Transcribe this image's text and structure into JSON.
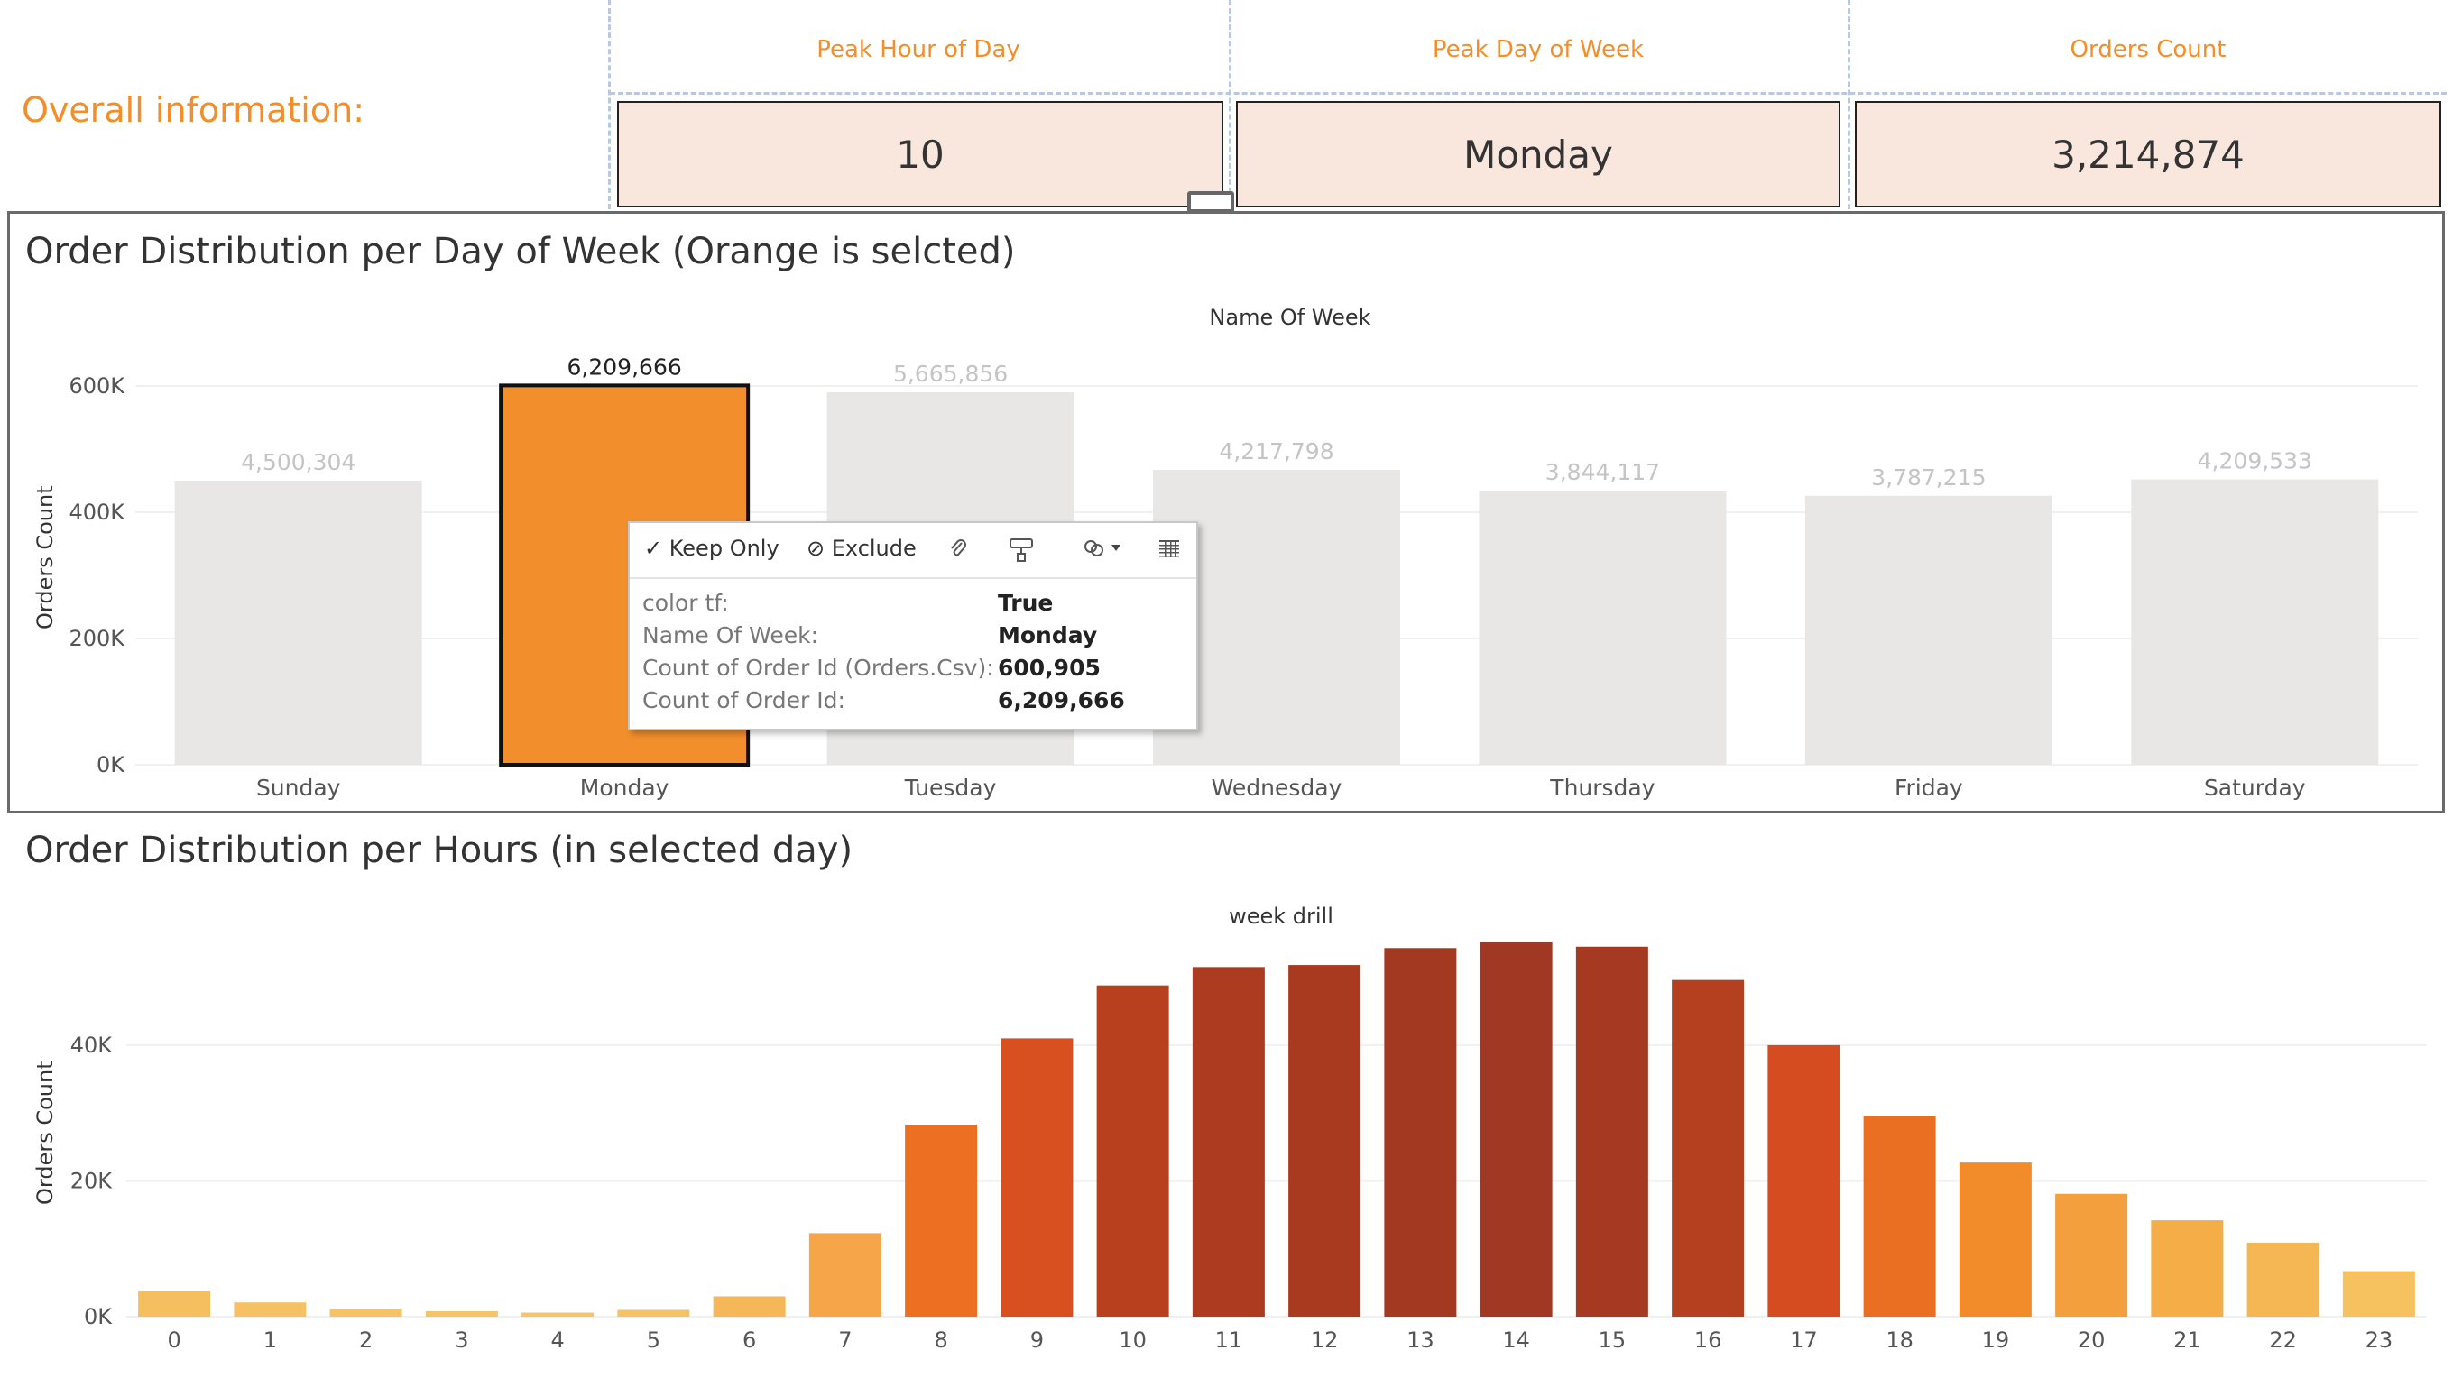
{
  "header": {
    "overall_label": "Overall information:",
    "kpis": [
      {
        "title": "Peak Hour of Day",
        "value": "10"
      },
      {
        "title": "Peak Day of Week",
        "value": "Monday"
      },
      {
        "title": "Orders Count",
        "value": "3,214,874"
      }
    ]
  },
  "day_panel": {
    "title": "Order Distribution per Day of Week (Orange is selcted)",
    "tooltip": {
      "keep_only": "Keep Only",
      "exclude": "Exclude",
      "rows": [
        {
          "key": "color tf:",
          "value": "True"
        },
        {
          "key": "Name Of Week:",
          "value": "Monday"
        },
        {
          "key": "Count of Order Id (Orders.Csv):",
          "value": "600,905"
        },
        {
          "key": "Count of Order Id:",
          "value": "6,209,666"
        }
      ]
    }
  },
  "hour_panel": {
    "title": "Order Distribution per Hours (in selected day)"
  },
  "chart_data": [
    {
      "type": "bar",
      "title": "Name Of Week",
      "xlabel": "",
      "ylabel": "Orders Count",
      "yticks": [
        "0K",
        "200K",
        "400K",
        "600K"
      ],
      "ylim": [
        0,
        600000
      ],
      "grid": true,
      "categories": [
        "Sunday",
        "Monday",
        "Tuesday",
        "Wednesday",
        "Thursday",
        "Friday",
        "Saturday"
      ],
      "values": [
        450000,
        600905,
        590000,
        467000,
        434000,
        426000,
        452000
      ],
      "data_labels": [
        "4,500,304",
        "6,209,666",
        "5,665,856",
        "4,217,798",
        "3,844,117",
        "3,787,215",
        "4,209,533"
      ],
      "selected": "Monday",
      "colors": {
        "selected": "#f28e2b",
        "unselected": "#e8e7e5",
        "label_selected": "#222222",
        "label_unselected": "#c4c4c4"
      }
    },
    {
      "type": "bar",
      "title": "week drill",
      "xlabel": "",
      "ylabel": "Orders Count",
      "yticks": [
        "0K",
        "20K",
        "40K"
      ],
      "ylim": [
        0,
        55000
      ],
      "grid": true,
      "categories": [
        "0",
        "1",
        "2",
        "3",
        "4",
        "5",
        "6",
        "7",
        "8",
        "9",
        "10",
        "11",
        "12",
        "13",
        "14",
        "15",
        "16",
        "17",
        "18",
        "19",
        "20",
        "21",
        "22",
        "23"
      ],
      "values": [
        3800,
        2100,
        1100,
        800,
        600,
        1000,
        3000,
        12300,
        28300,
        41000,
        48800,
        51500,
        51800,
        54300,
        55200,
        54500,
        49600,
        40000,
        29500,
        22700,
        18100,
        14200,
        10900,
        6700
      ],
      "colors": [
        "#f5bf60",
        "#f5c163",
        "#f5c366",
        "#f5c469",
        "#f5c56b",
        "#f5c266",
        "#f6b758",
        "#f6a548",
        "#ec6f22",
        "#d8501f",
        "#b9401f",
        "#ac3b1f",
        "#a93a20",
        "#a43921",
        "#a13823",
        "#a53922",
        "#b4401f",
        "#d44c1f",
        "#ea6f22",
        "#f28c2b",
        "#f49f3e",
        "#f5ad48",
        "#f5b753",
        "#f6c15f"
      ]
    }
  ]
}
